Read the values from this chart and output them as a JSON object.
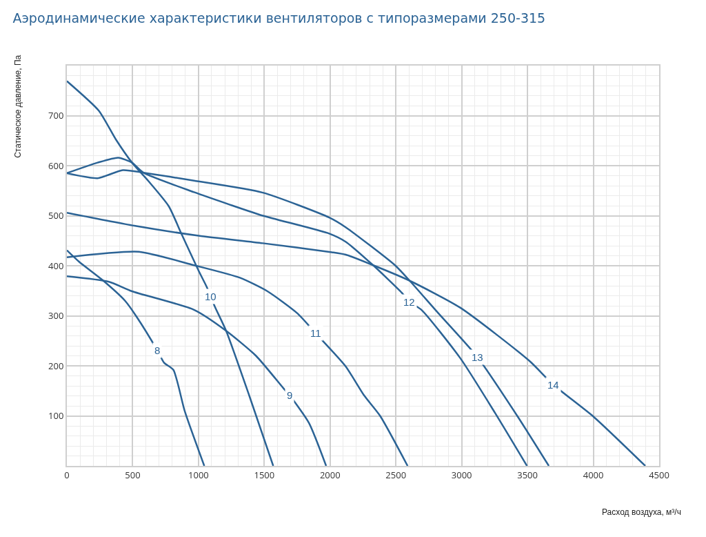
{
  "chart_data": {
    "type": "line",
    "title": "Аэродинамические характеристики вентиляторов с типоразмерами 250-315",
    "xlabel": "Расход воздуха, м³/ч",
    "ylabel": "Статическое давление, Па",
    "xlim": [
      0,
      4500
    ],
    "xticks": [
      0,
      500,
      1000,
      1500,
      2000,
      2500,
      3000,
      3500,
      4000,
      4500
    ],
    "ylim": [
      0,
      800
    ],
    "yticks": [
      100,
      200,
      300,
      400,
      500,
      600,
      700
    ],
    "grid": true,
    "marker": "none",
    "line_style": "solid",
    "series": [
      {
        "color": "#2b6395",
        "x": [
          0,
          93,
          268,
          442,
          530,
          687,
          739,
          809,
          896,
          1044
        ],
        "values": [
          431,
          408,
          372,
          330,
          298,
          231,
          206,
          192,
          109,
          0
        ]
      },
      {
        "color": "#2b6395",
        "x": [
          0,
          320,
          495,
          966,
          1210,
          1437,
          1646,
          1693,
          1839,
          1970
        ],
        "values": [
          379,
          368,
          349,
          312,
          270,
          220,
          155,
          141,
          86,
          0
        ]
      },
      {
        "color": "#2b6395",
        "x": [
          0,
          242,
          373,
          495,
          617,
          774,
          870,
          1001,
          1062,
          1123,
          1210,
          1385,
          1568
        ],
        "values": [
          769,
          710,
          652,
          606,
          570,
          519,
          464,
          390,
          358,
          319,
          270,
          141,
          0
        ]
      },
      {
        "color": "#2b6395",
        "x": [
          0,
          547,
          966,
          1315,
          1524,
          1751,
          1891,
          2118,
          2258,
          2380,
          2589
        ],
        "values": [
          417,
          428,
          401,
          376,
          349,
          305,
          265,
          199,
          141,
          100,
          0
        ]
      },
      {
        "color": "#2b6395",
        "x": [
          0,
          233,
          390,
          495,
          582,
          966,
          1228,
          1489,
          1996,
          2118,
          2327,
          2545,
          2602,
          2694,
          2990,
          3253,
          3496
        ],
        "values": [
          585,
          606,
          616,
          606,
          586,
          547,
          523,
          500,
          464,
          448,
          401,
          346,
          328,
          312,
          215,
          106,
          0
        ]
      },
      {
        "color": "#2b6395",
        "x": [
          0,
          233,
          425,
          582,
          966,
          1489,
          1996,
          2118,
          2493,
          2605,
          2816,
          3121,
          3427,
          3662
        ],
        "values": [
          585,
          575,
          591,
          586,
          570,
          546,
          496,
          477,
          401,
          370,
          307,
          217,
          98,
          0
        ]
      },
      {
        "color": "#2b6395",
        "x": [
          0,
          512,
          1001,
          1489,
          2013,
          2120,
          2327,
          2605,
          2990,
          3514,
          3697,
          4003,
          4395
        ],
        "values": [
          506,
          480,
          460,
          445,
          427,
          422,
          401,
          370,
          316,
          210,
          162,
          98,
          0
        ]
      }
    ],
    "annotations": [
      {
        "text": "8",
        "x": 687,
        "y": 231
      },
      {
        "text": "9",
        "x": 1693,
        "y": 141
      },
      {
        "text": "10",
        "x": 1092,
        "y": 338
      },
      {
        "text": "11",
        "x": 1891,
        "y": 265
      },
      {
        "text": "12",
        "x": 2602,
        "y": 328
      },
      {
        "text": "13",
        "x": 3121,
        "y": 217
      },
      {
        "text": "14",
        "x": 3697,
        "y": 162
      }
    ]
  }
}
